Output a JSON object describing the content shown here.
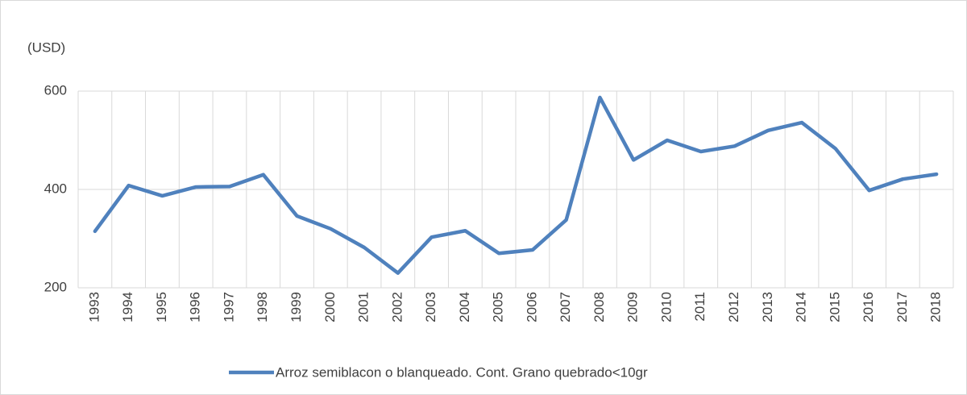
{
  "chart_data": {
    "type": "line",
    "y_label": "(USD)",
    "categories": [
      "1993",
      "1994",
      "1995",
      "1996",
      "1997",
      "1998",
      "1999",
      "2000",
      "2001",
      "2002",
      "2003",
      "2004",
      "2005",
      "2006",
      "2007",
      "2008",
      "2009",
      "2010",
      "2011",
      "2012",
      "2013",
      "2014",
      "2015",
      "2016",
      "2017",
      "2018"
    ],
    "series": [
      {
        "name": "Arroz semiblacon o blanqueado. Cont. Grano quebrado<10gr",
        "color": "#4f81bd",
        "values": [
          315,
          408,
          387,
          405,
          406,
          430,
          346,
          320,
          282,
          230,
          303,
          316,
          270,
          277,
          338,
          587,
          460,
          500,
          477,
          488,
          520,
          536,
          483,
          398,
          421,
          431
        ]
      }
    ],
    "ylim": [
      200,
      600
    ],
    "yticks": [
      200,
      400,
      600
    ],
    "grid": true,
    "legend": "bottom"
  }
}
